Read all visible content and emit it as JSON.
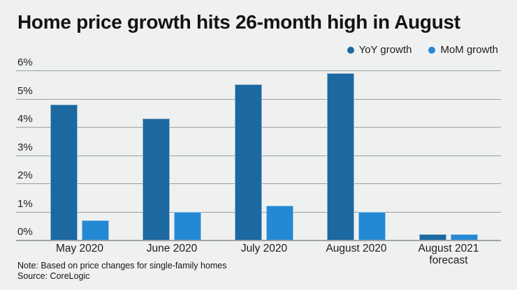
{
  "title": "Home price growth hits 26-month high in August",
  "legend": {
    "items": [
      {
        "label": "YoY growth",
        "color": "#1c68a0"
      },
      {
        "label": "MoM growth",
        "color": "#2489d4"
      }
    ]
  },
  "footer": {
    "note": "Note: Based on price changes for single-family homes",
    "source": "Source: CoreLogic"
  },
  "colors": {
    "background": "#eff1f0",
    "yoy": "#1c68a0",
    "mom": "#2489d4",
    "gridline": "#9b9e9e",
    "text": "#1b1b1b"
  },
  "chart_data": {
    "type": "bar",
    "title": "Home price growth hits 26-month high in August",
    "categories": [
      "May 2020",
      "June 2020",
      "July 2020",
      "August 2020",
      "August 2021\nforecast"
    ],
    "series": [
      {
        "name": "YoY growth",
        "color": "#1c68a0",
        "values": [
          4.8,
          4.3,
          5.5,
          5.9,
          0.2
        ]
      },
      {
        "name": "MoM growth",
        "color": "#2489d4",
        "values": [
          0.7,
          1.0,
          1.2,
          1.0,
          0.2
        ]
      }
    ],
    "xlabel": "",
    "ylabel": "",
    "ylim": [
      0,
      6
    ],
    "yticks": [
      0,
      1,
      2,
      3,
      4,
      5,
      6
    ],
    "ytick_suffix": "%",
    "grid": true,
    "legend_position": "top-right",
    "note": "Note: Based on price changes for single-family homes",
    "source": "Source: CoreLogic"
  }
}
